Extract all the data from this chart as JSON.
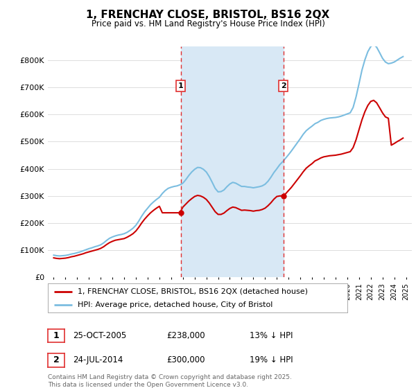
{
  "title": "1, FRENCHAY CLOSE, BRISTOL, BS16 2QX",
  "subtitle": "Price paid vs. HM Land Registry's House Price Index (HPI)",
  "ylabel_ticks": [
    "£0",
    "£100K",
    "£200K",
    "£300K",
    "£400K",
    "£500K",
    "£600K",
    "£700K",
    "£800K"
  ],
  "ylim": [
    0,
    850000
  ],
  "xlim_start": 1994.5,
  "xlim_end": 2025.5,
  "background_color": "#ffffff",
  "plot_bg_color": "#ffffff",
  "shade_between_color": "#d8e8f5",
  "grid_color": "#dddddd",
  "hpi_color": "#7bbde0",
  "price_color": "#cc0000",
  "vline_color": "#e03030",
  "transaction1_x": 2005.82,
  "transaction2_x": 2014.56,
  "transaction1_price": 238000,
  "transaction2_price": 300000,
  "legend_label1": "1, FRENCHAY CLOSE, BRISTOL, BS16 2QX (detached house)",
  "legend_label2": "HPI: Average price, detached house, City of Bristol",
  "annotation1_label": "1",
  "annotation2_label": "2",
  "table_row1": [
    "1",
    "25-OCT-2005",
    "£238,000",
    "13% ↓ HPI"
  ],
  "table_row2": [
    "2",
    "24-JUL-2014",
    "£300,000",
    "19% ↓ HPI"
  ],
  "footer": "Contains HM Land Registry data © Crown copyright and database right 2025.\nThis data is licensed under the Open Government Licence v3.0.",
  "hpi_data_x": [
    1995.0,
    1995.25,
    1995.5,
    1995.75,
    1996.0,
    1996.25,
    1996.5,
    1996.75,
    1997.0,
    1997.25,
    1997.5,
    1997.75,
    1998.0,
    1998.25,
    1998.5,
    1998.75,
    1999.0,
    1999.25,
    1999.5,
    1999.75,
    2000.0,
    2000.25,
    2000.5,
    2000.75,
    2001.0,
    2001.25,
    2001.5,
    2001.75,
    2002.0,
    2002.25,
    2002.5,
    2002.75,
    2003.0,
    2003.25,
    2003.5,
    2003.75,
    2004.0,
    2004.25,
    2004.5,
    2004.75,
    2005.0,
    2005.25,
    2005.5,
    2005.75,
    2006.0,
    2006.25,
    2006.5,
    2006.75,
    2007.0,
    2007.25,
    2007.5,
    2007.75,
    2008.0,
    2008.25,
    2008.5,
    2008.75,
    2009.0,
    2009.25,
    2009.5,
    2009.75,
    2010.0,
    2010.25,
    2010.5,
    2010.75,
    2011.0,
    2011.25,
    2011.5,
    2011.75,
    2012.0,
    2012.25,
    2012.5,
    2012.75,
    2013.0,
    2013.25,
    2013.5,
    2013.75,
    2014.0,
    2014.25,
    2014.5,
    2014.75,
    2015.0,
    2015.25,
    2015.5,
    2015.75,
    2016.0,
    2016.25,
    2016.5,
    2016.75,
    2017.0,
    2017.25,
    2017.5,
    2017.75,
    2018.0,
    2018.25,
    2018.5,
    2018.75,
    2019.0,
    2019.25,
    2019.5,
    2019.75,
    2020.0,
    2020.25,
    2020.5,
    2020.75,
    2021.0,
    2021.25,
    2021.5,
    2021.75,
    2022.0,
    2022.25,
    2022.5,
    2022.75,
    2023.0,
    2023.25,
    2023.5,
    2023.75,
    2024.0,
    2024.25,
    2024.5,
    2024.75
  ],
  "hpi_data_y": [
    82000,
    80000,
    79000,
    80000,
    81000,
    83000,
    86000,
    88000,
    91000,
    94000,
    98000,
    102000,
    106000,
    109000,
    113000,
    116000,
    120000,
    127000,
    136000,
    144000,
    149000,
    153000,
    156000,
    158000,
    161000,
    166000,
    173000,
    181000,
    192000,
    208000,
    226000,
    242000,
    255000,
    268000,
    278000,
    287000,
    295000,
    309000,
    320000,
    328000,
    332000,
    335000,
    337000,
    341000,
    347000,
    360000,
    375000,
    388000,
    398000,
    405000,
    404000,
    398000,
    388000,
    371000,
    350000,
    328000,
    315000,
    316000,
    322000,
    334000,
    344000,
    350000,
    347000,
    341000,
    335000,
    335000,
    333000,
    332000,
    330000,
    332000,
    334000,
    337000,
    343000,
    354000,
    369000,
    386000,
    400000,
    415000,
    426000,
    439000,
    452000,
    466000,
    481000,
    496000,
    511000,
    527000,
    540000,
    549000,
    557000,
    566000,
    571000,
    578000,
    582000,
    585000,
    587000,
    588000,
    589000,
    591000,
    594000,
    598000,
    602000,
    606000,
    626000,
    665000,
    713000,
    763000,
    801000,
    831000,
    850000,
    857000,
    848000,
    828000,
    807000,
    793000,
    787000,
    789000,
    793000,
    800000,
    807000,
    813000
  ],
  "price_data_x": [
    1995.0,
    1995.25,
    1995.5,
    1995.75,
    1996.0,
    1996.25,
    1996.5,
    1996.75,
    1997.0,
    1997.25,
    1997.5,
    1997.75,
    1998.0,
    1998.25,
    1998.5,
    1998.75,
    1999.0,
    1999.25,
    1999.5,
    1999.75,
    2000.0,
    2000.25,
    2000.5,
    2000.75,
    2001.0,
    2001.25,
    2001.5,
    2001.75,
    2002.0,
    2002.25,
    2002.5,
    2002.75,
    2003.0,
    2003.25,
    2003.5,
    2003.75,
    2004.0,
    2004.25,
    2004.5,
    2004.75,
    2005.0,
    2005.25,
    2005.5,
    2005.75,
    2006.0,
    2006.25,
    2006.5,
    2006.75,
    2007.0,
    2007.25,
    2007.5,
    2007.75,
    2008.0,
    2008.25,
    2008.5,
    2008.75,
    2009.0,
    2009.25,
    2009.5,
    2009.75,
    2010.0,
    2010.25,
    2010.5,
    2010.75,
    2011.0,
    2011.25,
    2011.5,
    2011.75,
    2012.0,
    2012.25,
    2012.5,
    2012.75,
    2013.0,
    2013.25,
    2013.5,
    2013.75,
    2014.0,
    2014.25,
    2014.5,
    2014.75,
    2015.0,
    2015.25,
    2015.5,
    2015.75,
    2016.0,
    2016.25,
    2016.5,
    2016.75,
    2017.0,
    2017.25,
    2017.5,
    2017.75,
    2018.0,
    2018.25,
    2018.5,
    2018.75,
    2019.0,
    2019.25,
    2019.5,
    2019.75,
    2020.0,
    2020.25,
    2020.5,
    2020.75,
    2021.0,
    2021.25,
    2021.5,
    2021.75,
    2022.0,
    2022.25,
    2022.5,
    2022.75,
    2023.0,
    2023.25,
    2023.5,
    2023.75,
    2024.0,
    2024.25,
    2024.5,
    2024.75
  ],
  "price_data_y": [
    72000,
    70000,
    69000,
    70000,
    71000,
    73000,
    76000,
    78000,
    81000,
    84000,
    87000,
    91000,
    94000,
    97000,
    100000,
    103000,
    107000,
    113000,
    121000,
    128000,
    133000,
    137000,
    139000,
    141000,
    143000,
    148000,
    154000,
    161000,
    171000,
    185000,
    201000,
    215000,
    227000,
    238000,
    247000,
    255000,
    262000,
    238000,
    238000,
    238000,
    238000,
    238000,
    238000,
    238000,
    259000,
    270000,
    281000,
    290000,
    298000,
    302000,
    300000,
    295000,
    287000,
    274000,
    258000,
    242000,
    232000,
    232000,
    237000,
    246000,
    254000,
    259000,
    257000,
    252000,
    247000,
    248000,
    247000,
    246000,
    244000,
    246000,
    247000,
    250000,
    255000,
    264000,
    275000,
    288000,
    298000,
    300000,
    300000,
    308000,
    320000,
    332000,
    346000,
    360000,
    374000,
    389000,
    402000,
    411000,
    419000,
    429000,
    434000,
    440000,
    444000,
    446000,
    448000,
    449000,
    450000,
    452000,
    454000,
    457000,
    460000,
    463000,
    478000,
    507000,
    544000,
    580000,
    610000,
    633000,
    648000,
    652000,
    643000,
    625000,
    606000,
    591000,
    586000,
    487000,
    493000,
    500000,
    506000,
    513000
  ]
}
